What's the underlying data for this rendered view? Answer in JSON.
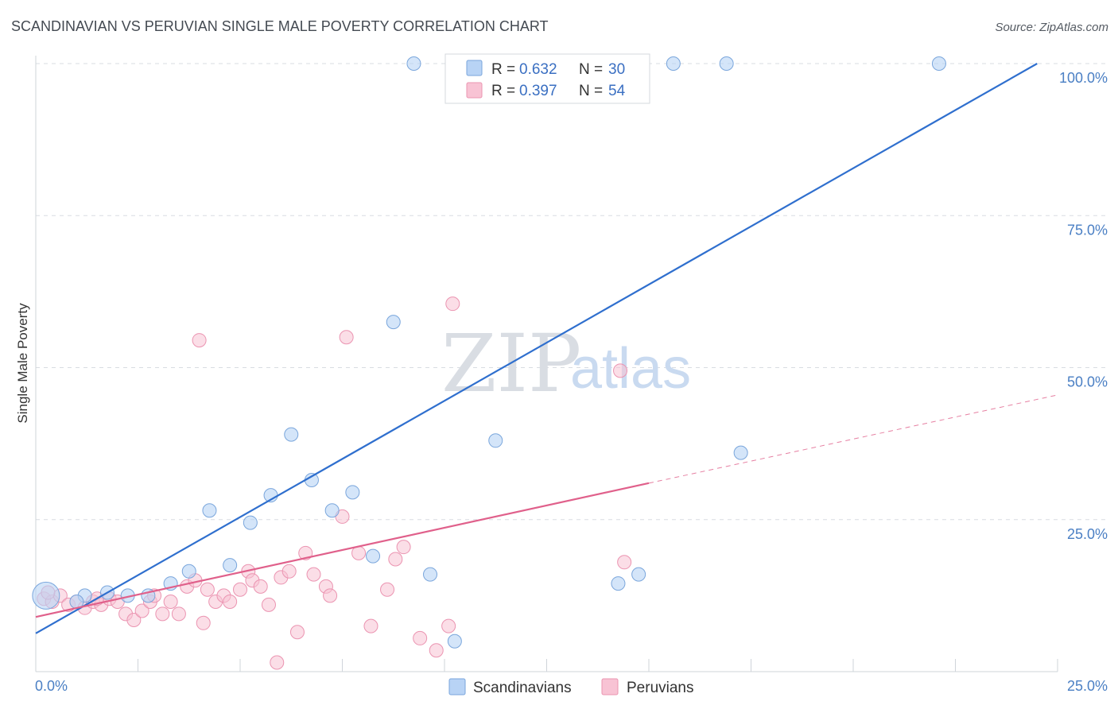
{
  "title": "SCANDINAVIAN VS PERUVIAN SINGLE MALE POVERTY CORRELATION CHART",
  "source": "Source: ZipAtlas.com",
  "watermark": {
    "zip": "ZIP",
    "atlas": "atlas"
  },
  "legend": {
    "r_label": "R =",
    "n_label": "N =",
    "rows": [
      {
        "r": "0.632",
        "n": "30"
      },
      {
        "r": "0.397",
        "n": "54"
      }
    ]
  },
  "colors": {
    "scandinavians_fill": "#b8d3f5",
    "scandinavians_stroke": "#7aa6dc",
    "scandinavians_line": "#2f6fce",
    "peruvians_fill": "#f8c3d4",
    "peruvians_stroke": "#eb94b1",
    "peruvians_line": "#e0608b",
    "grid": "#d8dce2",
    "tick_label": "#4a7fc4"
  },
  "chart_data": {
    "type": "scatter",
    "title": "SCANDINAVIAN VS PERUVIAN SINGLE MALE POVERTY CORRELATION CHART",
    "xlabel": "",
    "ylabel": "Single Male Poverty",
    "xlim": [
      0,
      25
    ],
    "ylim": [
      0,
      100
    ],
    "x_tick_labels": [
      "0.0%",
      "25.0%"
    ],
    "y_ticks": [
      25,
      50,
      75,
      100
    ],
    "y_tick_labels": [
      "25.0%",
      "50.0%",
      "75.0%",
      "100.0%"
    ],
    "grid": true,
    "legend_position": "top-center",
    "series": [
      {
        "name": "Scandinavians",
        "r": 0.632,
        "n": 30,
        "trend": {
          "x": [
            0,
            24.5
          ],
          "y": [
            6.3,
            100
          ]
        },
        "points": [
          {
            "x": 0.25,
            "y": 12.5,
            "big": true
          },
          {
            "x": 1.2,
            "y": 12.5
          },
          {
            "x": 1.75,
            "y": 13.0
          },
          {
            "x": 2.25,
            "y": 12.5
          },
          {
            "x": 2.75,
            "y": 12.5
          },
          {
            "x": 3.3,
            "y": 14.5
          },
          {
            "x": 3.75,
            "y": 16.5
          },
          {
            "x": 4.25,
            "y": 26.5
          },
          {
            "x": 4.75,
            "y": 17.5
          },
          {
            "x": 5.25,
            "y": 24.5
          },
          {
            "x": 5.75,
            "y": 29.0
          },
          {
            "x": 6.25,
            "y": 39.0
          },
          {
            "x": 6.75,
            "y": 31.5
          },
          {
            "x": 7.25,
            "y": 26.5
          },
          {
            "x": 7.75,
            "y": 29.5
          },
          {
            "x": 8.25,
            "y": 19.0
          },
          {
            "x": 8.75,
            "y": 57.5
          },
          {
            "x": 9.25,
            "y": 100.0
          },
          {
            "x": 9.65,
            "y": 16.0
          },
          {
            "x": 10.25,
            "y": 5.0
          },
          {
            "x": 10.85,
            "y": 100.0
          },
          {
            "x": 11.25,
            "y": 38.0
          },
          {
            "x": 11.75,
            "y": 100.0
          },
          {
            "x": 14.25,
            "y": 14.5
          },
          {
            "x": 14.75,
            "y": 16.0
          },
          {
            "x": 15.6,
            "y": 100.0
          },
          {
            "x": 16.9,
            "y": 100.0
          },
          {
            "x": 17.25,
            "y": 36.0
          },
          {
            "x": 22.1,
            "y": 100.0
          },
          {
            "x": 1.0,
            "y": 11.5
          }
        ]
      },
      {
        "name": "Peruvians",
        "r": 0.397,
        "n": 54,
        "trend": {
          "x": [
            0,
            15
          ],
          "y": [
            9.0,
            31.0
          ]
        },
        "trend_dashed": {
          "x": [
            15,
            25
          ],
          "y": [
            31.0,
            45.5
          ]
        },
        "points": [
          {
            "x": 0.2,
            "y": 12.0
          },
          {
            "x": 0.4,
            "y": 11.5
          },
          {
            "x": 0.6,
            "y": 12.5
          },
          {
            "x": 0.8,
            "y": 11.0
          },
          {
            "x": 1.0,
            "y": 11.5
          },
          {
            "x": 1.2,
            "y": 10.5
          },
          {
            "x": 1.4,
            "y": 11.5
          },
          {
            "x": 1.6,
            "y": 11.0
          },
          {
            "x": 1.8,
            "y": 12.0
          },
          {
            "x": 2.0,
            "y": 11.5
          },
          {
            "x": 2.2,
            "y": 9.5
          },
          {
            "x": 2.4,
            "y": 8.5
          },
          {
            "x": 2.6,
            "y": 10.0
          },
          {
            "x": 2.8,
            "y": 11.5
          },
          {
            "x": 2.9,
            "y": 12.5
          },
          {
            "x": 3.1,
            "y": 9.5
          },
          {
            "x": 3.3,
            "y": 11.5
          },
          {
            "x": 3.5,
            "y": 9.5
          },
          {
            "x": 3.7,
            "y": 14.0
          },
          {
            "x": 3.9,
            "y": 15.0
          },
          {
            "x": 4.1,
            "y": 8.0
          },
          {
            "x": 4.2,
            "y": 13.5
          },
          {
            "x": 4.4,
            "y": 11.5
          },
          {
            "x": 4.6,
            "y": 12.5
          },
          {
            "x": 4.75,
            "y": 11.5
          },
          {
            "x": 5.0,
            "y": 13.5
          },
          {
            "x": 5.2,
            "y": 16.5
          },
          {
            "x": 5.3,
            "y": 15.0
          },
          {
            "x": 5.5,
            "y": 14.0
          },
          {
            "x": 5.7,
            "y": 11.0
          },
          {
            "x": 5.9,
            "y": 1.5
          },
          {
            "x": 6.0,
            "y": 15.5
          },
          {
            "x": 6.2,
            "y": 16.5
          },
          {
            "x": 6.4,
            "y": 6.5
          },
          {
            "x": 6.6,
            "y": 19.5
          },
          {
            "x": 6.8,
            "y": 16.0
          },
          {
            "x": 7.1,
            "y": 14.0
          },
          {
            "x": 7.2,
            "y": 12.5
          },
          {
            "x": 7.5,
            "y": 25.5
          },
          {
            "x": 7.6,
            "y": 55.0
          },
          {
            "x": 7.9,
            "y": 19.5
          },
          {
            "x": 8.2,
            "y": 7.5
          },
          {
            "x": 8.6,
            "y": 13.5
          },
          {
            "x": 8.8,
            "y": 18.5
          },
          {
            "x": 9.0,
            "y": 20.5
          },
          {
            "x": 9.4,
            "y": 5.5
          },
          {
            "x": 9.8,
            "y": 3.5
          },
          {
            "x": 10.1,
            "y": 7.5
          },
          {
            "x": 10.2,
            "y": 60.5
          },
          {
            "x": 4.0,
            "y": 54.5
          },
          {
            "x": 14.3,
            "y": 49.5
          },
          {
            "x": 14.4,
            "y": 18.0
          },
          {
            "x": 0.3,
            "y": 13.0
          },
          {
            "x": 1.5,
            "y": 12.0
          }
        ]
      }
    ]
  }
}
